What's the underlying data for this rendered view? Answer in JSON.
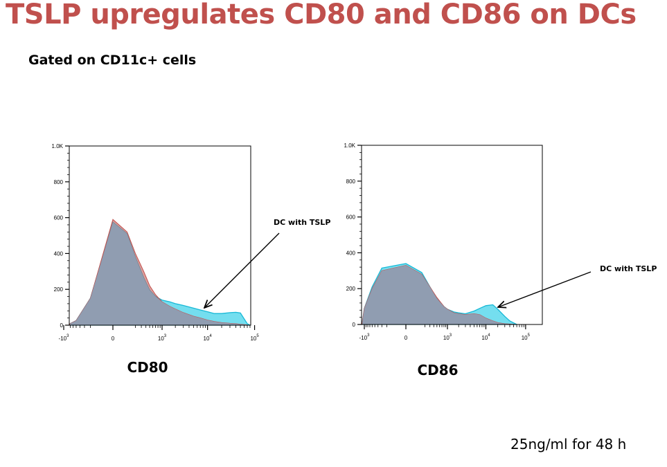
{
  "page": {
    "title": "TSLP upregulates CD80 and CD86 on DCs",
    "subtitle": "Gated on CD11c+ cells",
    "footnote": "25ng/ml for 48 h"
  },
  "colors": {
    "title": "#c0504d",
    "control_fill": "#c0504d",
    "tslp_fill": "#5cd8ec",
    "tslp_stroke": "#17b8d6",
    "overlap_fill": "#8f9fb4"
  },
  "chart_data": [
    {
      "type": "area",
      "xlabel": "CD80",
      "ylabel": "",
      "x_scale": "biexponential",
      "ylim": [
        0,
        1000
      ],
      "y_ticks": [
        0,
        200,
        400,
        600,
        800,
        1000
      ],
      "y_tick_labels": [
        "0",
        "200",
        "400",
        "600",
        "800",
        "1.0K"
      ],
      "x_ticks": [
        {
          "value": -1000,
          "base": "-10",
          "exp": "3"
        },
        {
          "value": 0,
          "base": "0",
          "exp": ""
        },
        {
          "value": 1000,
          "base": "10",
          "exp": "3"
        },
        {
          "value": 10000,
          "base": "10",
          "exp": "4"
        },
        {
          "value": 100000,
          "base": "10",
          "exp": "5"
        }
      ],
      "grid": false,
      "annotation": {
        "text": "DC with TSLP",
        "points_to_x": 15000,
        "points_to_y": 75
      },
      "series": [
        {
          "x": [
            -3000,
            -2000,
            -1000,
            -500,
            -200,
            0,
            100,
            200,
            350,
            500,
            700,
            1000,
            1500,
            2000,
            3000,
            5000,
            7000,
            10000,
            14000,
            20000,
            30000,
            40000,
            50000,
            60000,
            70000,
            85000
          ],
          "y": [
            0,
            4,
            8,
            25,
            150,
            590,
            520,
            400,
            300,
            220,
            170,
            130,
            105,
            90,
            70,
            50,
            40,
            28,
            20,
            14,
            10,
            8,
            5,
            3,
            1,
            0
          ]
        },
        {
          "x": [
            -3000,
            -2000,
            -1000,
            -500,
            -200,
            0,
            100,
            200,
            350,
            500,
            700,
            1000,
            1500,
            2000,
            3000,
            5000,
            7000,
            10000,
            14000,
            20000,
            30000,
            40000,
            50000,
            60000,
            70000,
            85000
          ],
          "y": [
            0,
            4,
            8,
            25,
            150,
            575,
            510,
            380,
            265,
            195,
            160,
            140,
            130,
            120,
            110,
            95,
            85,
            75,
            65,
            65,
            70,
            72,
            68,
            35,
            8,
            0
          ]
        }
      ]
    },
    {
      "type": "area",
      "xlabel": "CD86",
      "ylabel": "",
      "x_scale": "biexponential",
      "ylim": [
        0,
        1000
      ],
      "y_ticks": [
        0,
        200,
        400,
        600,
        800,
        1000
      ],
      "y_tick_labels": [
        "0",
        "200",
        "400",
        "600",
        "800",
        "1.0K"
      ],
      "x_ticks": [
        {
          "value": -1000,
          "base": "-10",
          "exp": "3"
        },
        {
          "value": 0,
          "base": "0",
          "exp": ""
        },
        {
          "value": 1000,
          "base": "10",
          "exp": "3"
        },
        {
          "value": 10000,
          "base": "10",
          "exp": "4"
        },
        {
          "value": 100000,
          "base": "10",
          "exp": "5"
        }
      ],
      "grid": false,
      "annotation": {
        "text": "DC with TSLP",
        "points_to_x": 12000,
        "points_to_y": 100
      },
      "series": [
        {
          "x": [
            -3000,
            -2000,
            -1000,
            -600,
            -300,
            0,
            150,
            300,
            500,
            800,
            1000,
            1500,
            2000,
            3000,
            5000,
            7000,
            10000,
            15000,
            20000,
            30000,
            40000,
            60000
          ],
          "y": [
            0,
            10,
            90,
            200,
            300,
            330,
            280,
            210,
            150,
            100,
            85,
            65,
            60,
            55,
            60,
            55,
            35,
            20,
            10,
            4,
            2,
            0
          ]
        },
        {
          "x": [
            -3000,
            -2000,
            -1000,
            -600,
            -300,
            0,
            150,
            300,
            500,
            800,
            1000,
            1500,
            2000,
            3000,
            5000,
            7000,
            10000,
            15000,
            20000,
            30000,
            40000,
            60000
          ],
          "y": [
            0,
            10,
            90,
            210,
            315,
            340,
            290,
            210,
            145,
            100,
            85,
            70,
            65,
            60,
            75,
            90,
            105,
            110,
            85,
            45,
            20,
            0
          ]
        }
      ]
    }
  ]
}
